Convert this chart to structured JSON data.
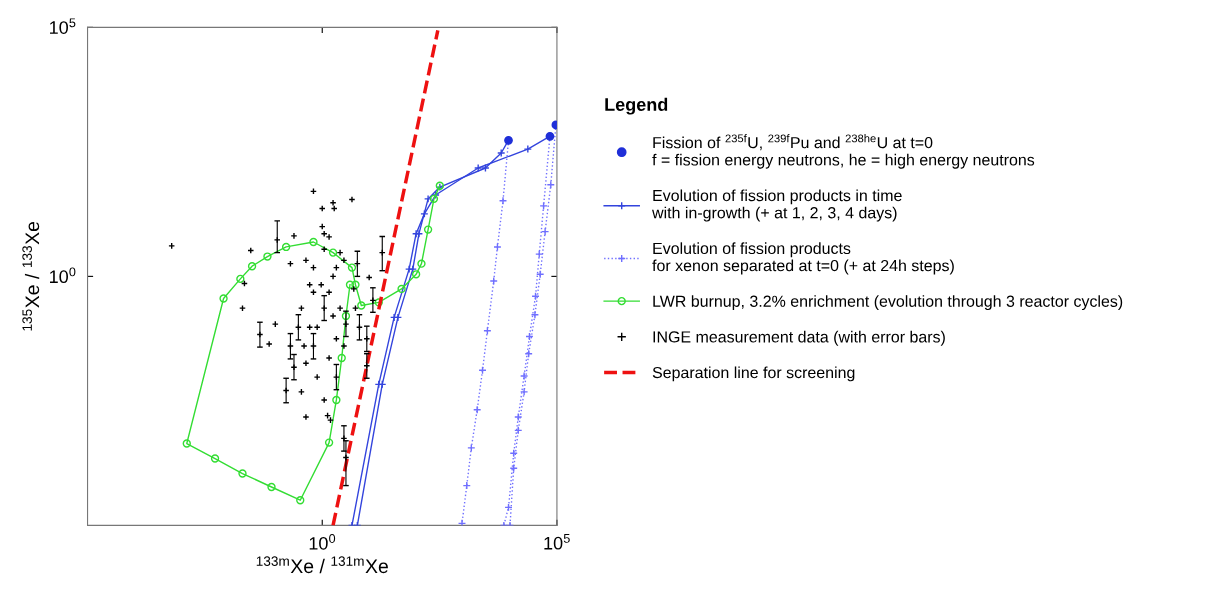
{
  "chart_data": {
    "type": "line",
    "xlabel": "$^{133m}$Xe / $^{131m}$Xe",
    "ylabel": "$^{135}$Xe / $^{133}$Xe",
    "legend_title": "Legend",
    "log": "xy",
    "grid": false,
    "legend": "right",
    "xlim": [
      1e-05,
      100000
    ],
    "ylim": [
      1e-05,
      100000
    ],
    "xticks": [
      {
        "value": 1,
        "label": "10$^{0}$"
      },
      {
        "value": 100000,
        "label": "10$^{5}$"
      }
    ],
    "yticks": [
      {
        "value": 1,
        "label": "10$^{0}$"
      },
      {
        "value": 100000,
        "label": "10$^{5}$"
      }
    ],
    "series": [
      {
        "name": "Fission of $^{235f}$U, $^{239f}$Pu and $^{238he}$U at t=0\nf = fission energy neutrons, he = high energy neutrons",
        "type": "scatter",
        "marker": "circle",
        "color": "#1f2fd8",
        "x": [
          9300,
          71000,
          95000
        ],
        "values": [
          540,
          650,
          1100
        ]
      },
      {
        "name": "Evolution of fission products in time\nwith in-growth (+ at 1, 2, 3, 4 days)",
        "marker": "cross",
        "line_style": "solid",
        "color": "#3344dd",
        "x": [
          5.6,
          19,
          41,
          85,
          115,
          180,
          320,
          3000,
          6500,
          9300
        ],
        "values": [
          1e-05,
          0.0068,
          0.15,
          1.4,
          7.2,
          36,
          62,
          150,
          300,
          540
        ]
      },
      {
        "marker": "cross",
        "line_style": "solid",
        "color": "#3344dd",
        "x": [
          4.3,
          16,
          34,
          71,
          100,
          150,
          260,
          2100,
          24000,
          71000
        ],
        "values": [
          1e-05,
          0.0068,
          0.15,
          1.4,
          7.2,
          18,
          43,
          150,
          360,
          650
        ]
      },
      {
        "name": "Evolution of fission products\nfor xenon separated at t=0 (+ at 24h steps)",
        "marker": "cross",
        "line_style": "dotted",
        "color": "#6f6fff",
        "x": [
          9300,
          7100,
          5400,
          4500,
          3300,
          2600,
          2000,
          1500,
          1200,
          950
        ],
        "values": [
          540,
          33,
          3.9,
          0.81,
          0.081,
          0.013,
          0.0021,
          0.00036,
          6.3e-05,
          1.1e-05
        ]
      },
      {
        "marker": "cross",
        "line_style": "dotted",
        "color": "#6f6fff",
        "x": [
          71000,
          52000,
          42000,
          35000,
          26000,
          20000,
          15000,
          12000,
          9300,
          7400
        ],
        "values": [
          650,
          26,
          2.8,
          0.4,
          0.062,
          0.01,
          0.0015,
          0.00028,
          2.3e-05,
          1e-05
        ]
      },
      {
        "marker": "cross",
        "line_style": "dotted",
        "color": "#6f6fff",
        "x": [
          95000,
          74000,
          56000,
          44000,
          34000,
          25000,
          20000,
          15000,
          12000,
          10000
        ],
        "values": [
          1100,
          69,
          7.9,
          1.1,
          0.17,
          0.028,
          0.0048,
          0.00081,
          0.00014,
          1e-05
        ]
      },
      {
        "name": "LWR burnup, 3.2% enrichment (evolution through 3 reactor cycles)",
        "marker": "circle",
        "line_style": "solid",
        "color": "#33dd33",
        "x": [
          320,
          240,
          180,
          130,
          100,
          49,
          16,
          6.8,
          5.1,
          4.3,
          1.7,
          0.65,
          0.17,
          0.068,
          0.032,
          0.018,
          0.0079,
          0.0013,
          0.0052,
          0.02,
          0.083,
          0.34,
          1.4,
          2.0,
          2.6,
          3.2,
          3.9
        ],
        "values": [
          66,
          36,
          8.7,
          1.8,
          1.1,
          0.56,
          0.3,
          0.26,
          0.68,
          1.5,
          3.0,
          4.9,
          3.9,
          2.5,
          1.6,
          0.89,
          0.36,
          0.00044,
          0.00022,
          0.00011,
          5.9e-05,
          3.2e-05,
          0.00046,
          0.0033,
          0.023,
          0.16,
          0.68
        ]
      },
      {
        "name": "INGE measurement data (with error bars)",
        "type": "scatter",
        "marker": "cross",
        "color": "#000000",
        "x": [
          0.00062,
          0.03,
          0.022,
          0.65,
          1.0,
          1.8,
          4.3,
          1.7,
          1.1,
          0.11,
          0.25,
          0.02,
          0.047,
          0.074,
          0.1,
          0.17,
          0.45,
          0.36,
          0.25,
          0.45,
          0.65,
          0.78,
          1.1,
          1.4,
          0.95,
          0.54,
          0.36,
          0.31,
          0.21,
          0.78,
          1.1,
          1.3,
          1.5,
          2.9,
          3.2,
          2.0,
          2.9,
          3.2,
          5.1,
          6.2,
          8.9,
          8.9,
          12,
          10,
          19,
          5.6,
          2.9,
          2.0,
          0.65,
          0.45,
          0.21,
          1.1,
          2.4,
          1.4,
          1.0,
          0.65,
          1.7,
          2.0,
          0.54,
          0.41,
          1.4,
          2.4,
          4.7,
          1.7
        ],
        "values": [
          4.1,
          3.3,
          0.72,
          51,
          23,
          23,
          35,
          30,
          7.2,
          5.4,
          6.5,
          0.23,
          0.068,
          0.044,
          0.11,
          0.0051,
          0.0015,
          0.0048,
          0.015,
          0.018,
          0.04,
          0.095,
          0.23,
          0.48,
          0.68,
          0.68,
          0.23,
          0.095,
          0.04,
          0.0095,
          0.0033,
          0.0016,
          0.0013,
          0.00056,
          0.00023,
          0.0095,
          0.04,
          0.11,
          0.23,
          0.095,
          0.056,
          0.016,
          0.33,
          0.95,
          3.0,
          1.8,
          2.1,
          1.5,
          1.5,
          2.1,
          1.8,
          3.5,
          3.0,
          6.2,
          10,
          0.48,
          0.16,
          0.056,
          0.095,
          0.04,
          0.023,
          0.23,
          0.56,
          1.0
        ],
        "errors": [
          null,
          null,
          null,
          null,
          null,
          null,
          null,
          null,
          null,
          [
            3.0,
            13
          ],
          null,
          null,
          [
            0.038,
            0.12
          ],
          null,
          null,
          [
            0.0029,
            0.009
          ],
          null,
          null,
          [
            0.0084,
            0.027
          ],
          null,
          [
            0.022,
            0.071
          ],
          null,
          [
            0.13,
            0.41
          ],
          null,
          null,
          null,
          null,
          [
            0.053,
            0.17
          ],
          [
            0.022,
            0.071
          ],
          null,
          null,
          null,
          null,
          [
            0.00031,
            0.001
          ],
          [
            6.3e-05,
            0.0005
          ],
          [
            0.0053,
            0.017
          ],
          null,
          [
            0.062,
            0.2
          ],
          null,
          [
            0.053,
            0.17
          ],
          [
            0.031,
            0.1
          ],
          [
            0.009,
            0.028
          ],
          [
            0.19,
            0.59
          ],
          null,
          [
            1.3,
            6.3
          ],
          [
            1.0,
            3.2
          ],
          null,
          null,
          null,
          null,
          null,
          null,
          null,
          null,
          null,
          null,
          null,
          null,
          null,
          null,
          null,
          null,
          null,
          null
        ]
      },
      {
        "name": "Separation line for screening",
        "marker": "none",
        "line_style": "dashed",
        "color": "#ee1111",
        "x": [
          1.7,
          290
        ],
        "values": [
          1e-05,
          87000
        ]
      }
    ]
  }
}
